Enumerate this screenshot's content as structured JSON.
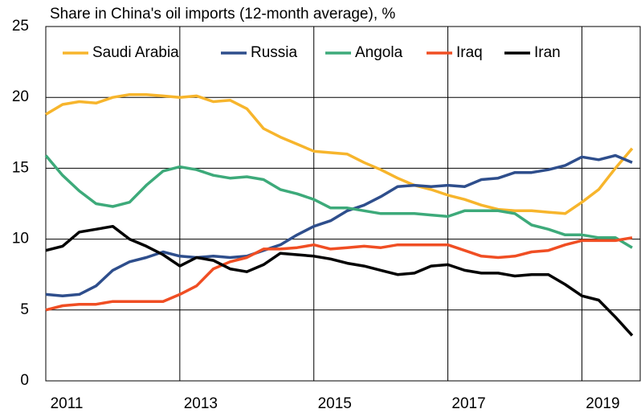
{
  "chart_data": {
    "type": "line",
    "title": "Share in China's oil imports (12-month average), %",
    "x": [
      2011,
      2011.25,
      2011.5,
      2011.75,
      2012,
      2012.25,
      2012.5,
      2012.75,
      2013,
      2013.25,
      2013.5,
      2013.75,
      2014,
      2014.25,
      2014.5,
      2014.75,
      2015,
      2015.25,
      2015.5,
      2015.75,
      2016,
      2016.25,
      2016.5,
      2016.75,
      2017,
      2017.25,
      2017.5,
      2017.75,
      2018,
      2018.25,
      2018.5,
      2018.75,
      2019,
      2019.25,
      2019.5,
      2019.75
    ],
    "series": [
      {
        "name": "Saudi Arabia",
        "color": "#f7b52c",
        "values": [
          18.8,
          19.5,
          19.7,
          19.6,
          20.0,
          20.2,
          20.2,
          20.1,
          20.0,
          20.1,
          19.7,
          19.8,
          19.2,
          17.8,
          17.2,
          16.7,
          16.2,
          16.1,
          16.0,
          15.4,
          14.9,
          14.3,
          13.8,
          13.5,
          13.1,
          12.8,
          12.4,
          12.1,
          12.0,
          12.0,
          11.9,
          11.8,
          12.6,
          13.5,
          15.0,
          16.4
        ]
      },
      {
        "name": "Russia",
        "color": "#2e4e8c",
        "values": [
          6.1,
          6.0,
          6.1,
          6.7,
          7.8,
          8.4,
          8.7,
          9.1,
          8.8,
          8.7,
          8.8,
          8.7,
          8.8,
          9.2,
          9.6,
          10.3,
          10.9,
          11.3,
          12.0,
          12.4,
          13.0,
          13.7,
          13.8,
          13.7,
          13.8,
          13.7,
          14.2,
          14.3,
          14.7,
          14.7,
          14.9,
          15.2,
          15.8,
          15.6,
          15.9,
          15.4
        ]
      },
      {
        "name": "Angola",
        "color": "#3daa7a",
        "values": [
          15.9,
          14.5,
          13.4,
          12.5,
          12.3,
          12.6,
          13.8,
          14.8,
          15.1,
          14.9,
          14.5,
          14.3,
          14.4,
          14.2,
          13.5,
          13.2,
          12.8,
          12.2,
          12.2,
          12.0,
          11.8,
          11.8,
          11.8,
          11.7,
          11.6,
          12.0,
          12.0,
          12.0,
          11.8,
          11.0,
          10.7,
          10.3,
          10.3,
          10.1,
          10.1,
          9.4
        ]
      },
      {
        "name": "Iraq",
        "color": "#f04e23",
        "values": [
          5.0,
          5.3,
          5.4,
          5.4,
          5.6,
          5.6,
          5.6,
          5.6,
          6.1,
          6.7,
          7.9,
          8.4,
          8.7,
          9.3,
          9.3,
          9.4,
          9.6,
          9.3,
          9.4,
          9.5,
          9.4,
          9.6,
          9.6,
          9.6,
          9.6,
          9.2,
          8.8,
          8.7,
          8.8,
          9.1,
          9.2,
          9.6,
          9.9,
          9.9,
          9.9,
          10.1
        ]
      },
      {
        "name": "Iran",
        "color": "#000000",
        "values": [
          9.2,
          9.5,
          10.5,
          10.7,
          10.9,
          10.0,
          9.5,
          8.9,
          8.1,
          8.7,
          8.5,
          7.9,
          7.7,
          8.2,
          9.0,
          8.9,
          8.8,
          8.6,
          8.3,
          8.1,
          7.8,
          7.5,
          7.6,
          8.1,
          8.2,
          7.8,
          7.6,
          7.6,
          7.4,
          7.5,
          7.5,
          6.8,
          6.0,
          5.7,
          4.5,
          3.2
        ]
      }
    ],
    "xlim": [
      2011,
      2019.87
    ],
    "xticks": [
      2011,
      2013,
      2015,
      2017,
      2019
    ],
    "ylim": [
      0,
      25
    ],
    "yticks": [
      0,
      5,
      10,
      15,
      20,
      25
    ],
    "grid": true
  }
}
